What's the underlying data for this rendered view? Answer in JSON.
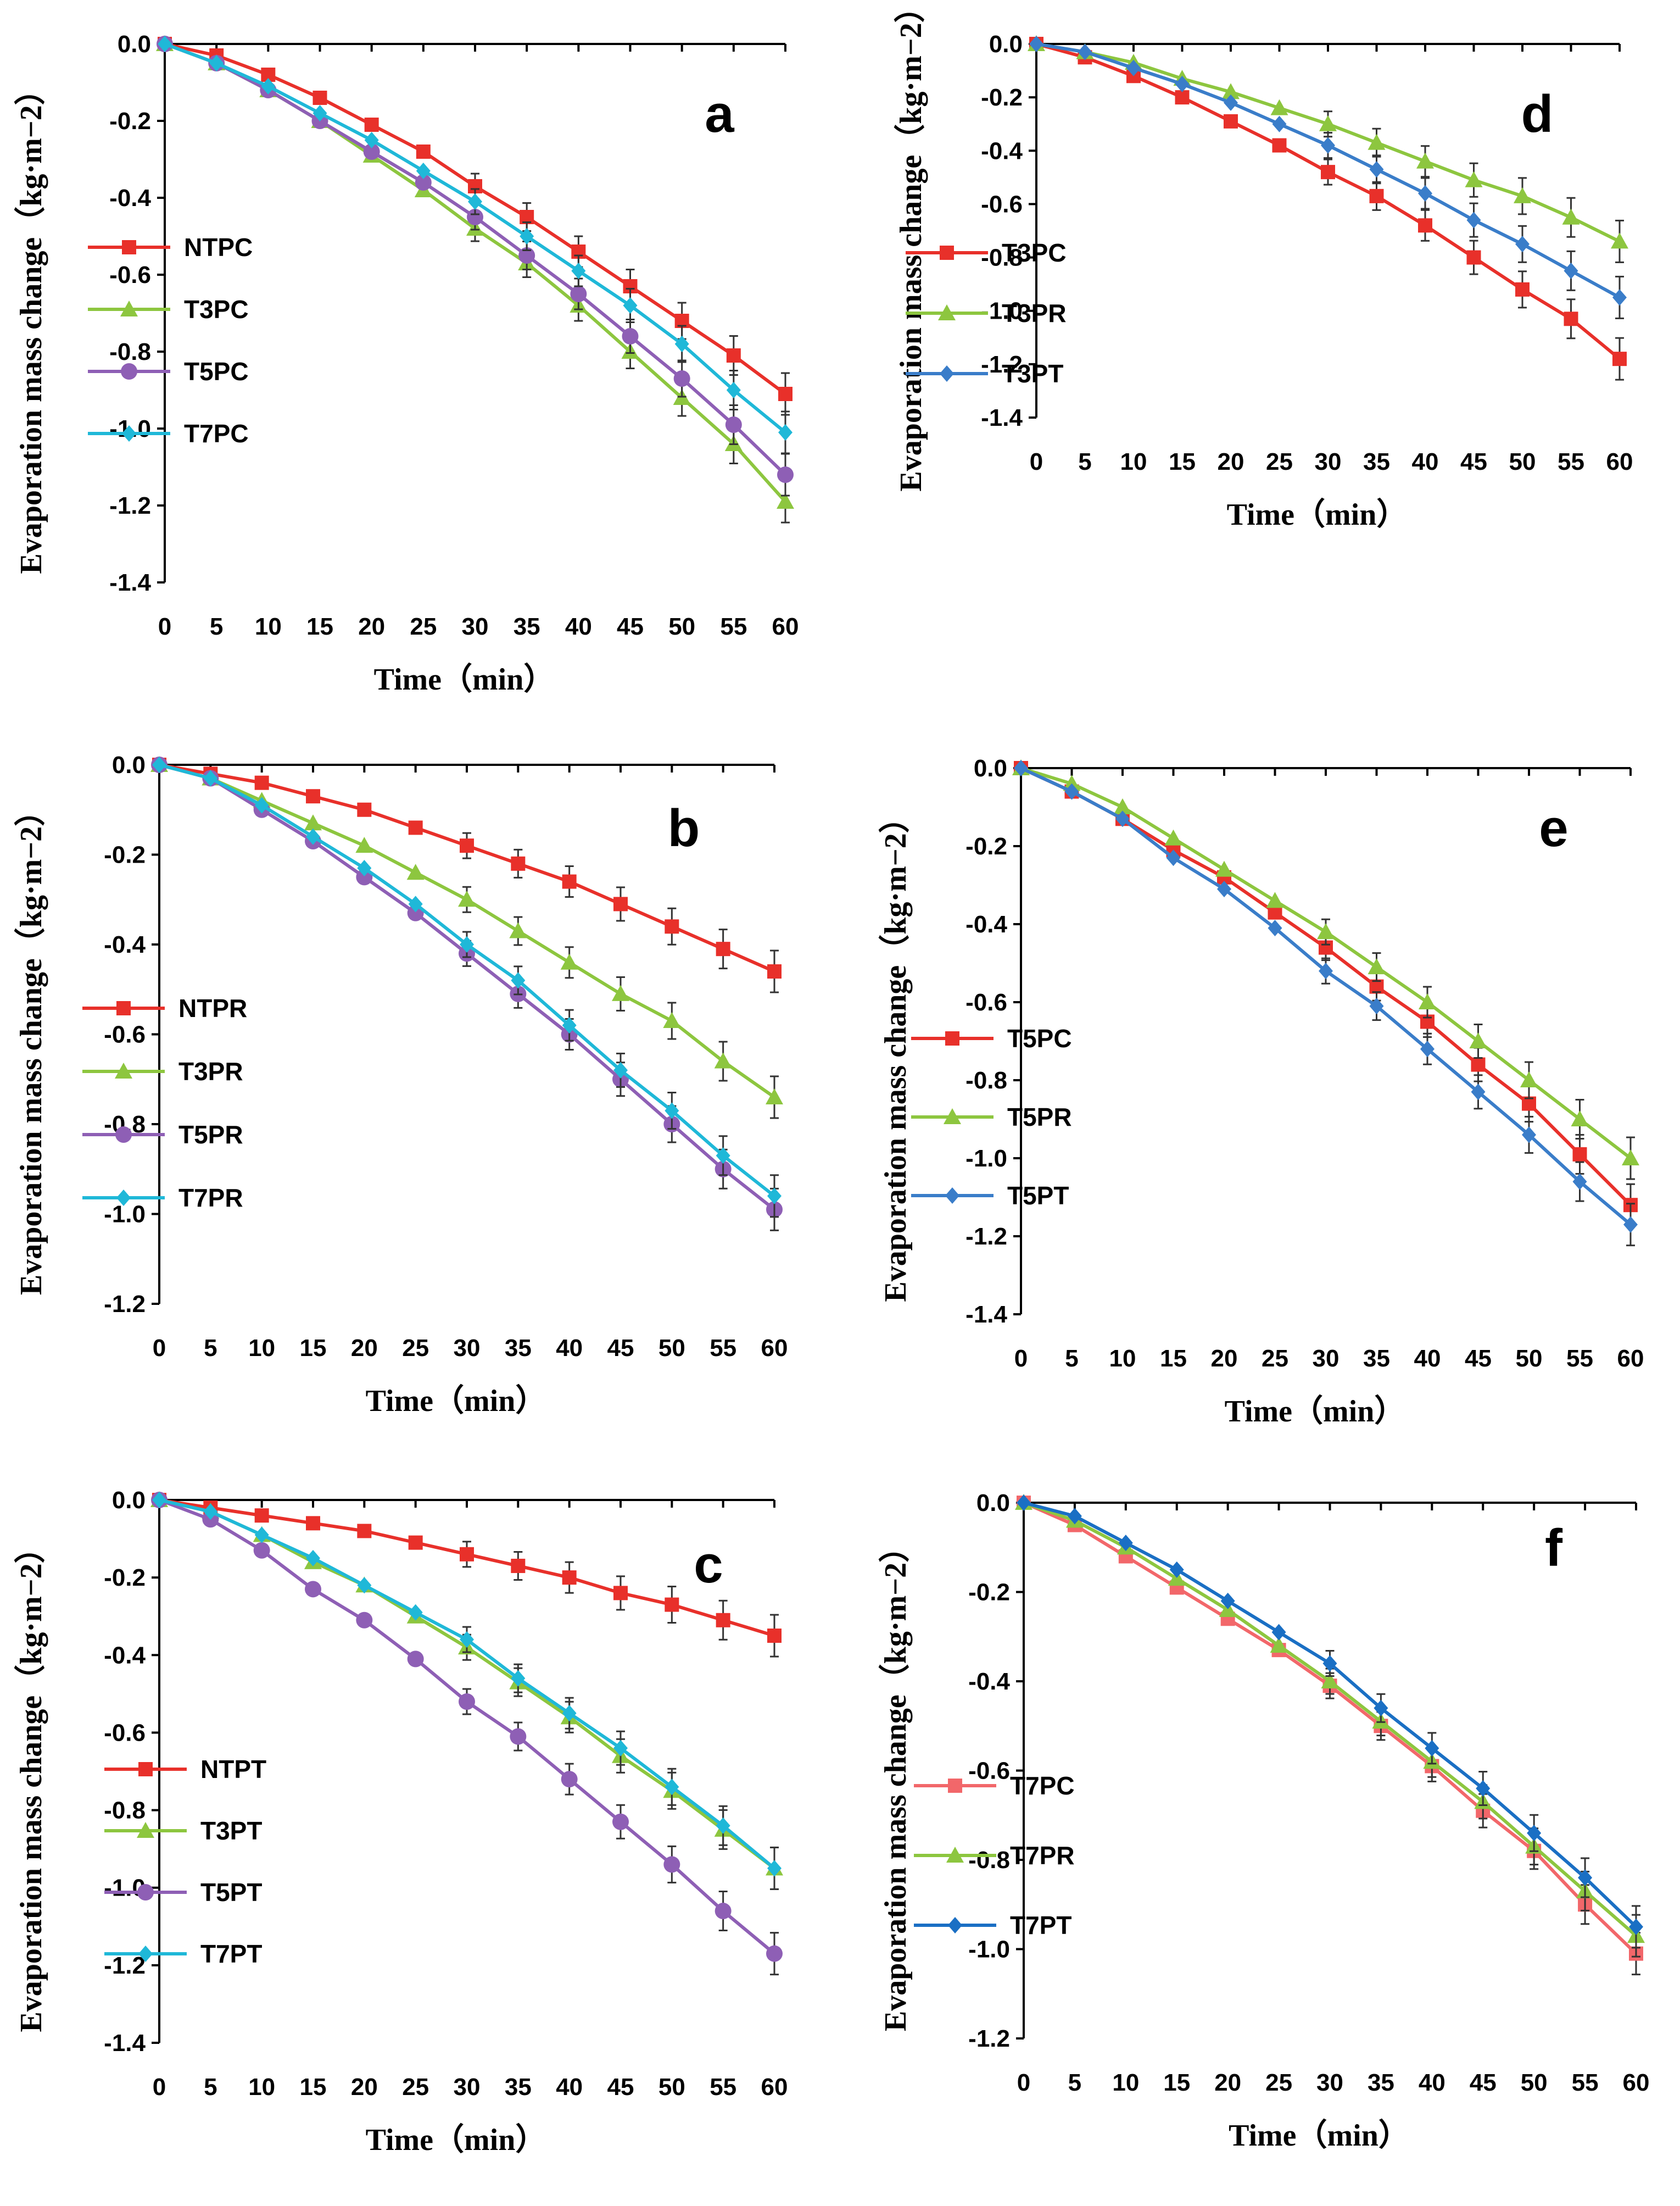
{
  "figure": {
    "x_label": "Time（min）",
    "y_label": "Evaporation mass change（kg·m−2）"
  },
  "chart_data": [
    {
      "type": "line",
      "panel_label": "a",
      "legend_position": "center-left",
      "xlabel": "Time（min）",
      "ylabel": "Evaporation mass change（kg·m−2）",
      "x": [
        0,
        5,
        10,
        15,
        20,
        25,
        30,
        35,
        40,
        45,
        50,
        55,
        60
      ],
      "xlim": [
        0,
        60
      ],
      "ylim": [
        -1.4,
        0.0
      ],
      "y_ticks": [
        "0.0",
        "-0.2",
        "-0.4",
        "-0.6",
        "-0.8",
        "-1.0",
        "-1.2",
        "-1.4"
      ],
      "series": [
        {
          "name": "NTPC",
          "color": "#e8302a",
          "marker": "square",
          "values": [
            0,
            -0.03,
            -0.08,
            -0.14,
            -0.21,
            -0.28,
            -0.37,
            -0.45,
            -0.54,
            -0.63,
            -0.72,
            -0.81,
            -0.91
          ]
        },
        {
          "name": "T3PC",
          "color": "#8dc63f",
          "marker": "triangle",
          "values": [
            0,
            -0.05,
            -0.12,
            -0.2,
            -0.29,
            -0.38,
            -0.48,
            -0.57,
            -0.68,
            -0.8,
            -0.92,
            -1.04,
            -1.19
          ]
        },
        {
          "name": "T5PC",
          "color": "#8e5fb5",
          "marker": "circle",
          "values": [
            0,
            -0.05,
            -0.12,
            -0.2,
            -0.28,
            -0.36,
            -0.45,
            -0.55,
            -0.65,
            -0.76,
            -0.87,
            -0.99,
            -1.12
          ]
        },
        {
          "name": "T7PC",
          "color": "#1fb8d8",
          "marker": "diamond",
          "values": [
            0,
            -0.05,
            -0.11,
            -0.18,
            -0.25,
            -0.33,
            -0.41,
            -0.5,
            -0.59,
            -0.68,
            -0.78,
            -0.9,
            -1.01
          ]
        }
      ]
    },
    {
      "type": "line",
      "panel_label": "b",
      "legend_position": "center-left",
      "xlabel": "Time（min）",
      "ylabel": "Evaporation mass change（kg·m−2）",
      "x": [
        0,
        5,
        10,
        15,
        20,
        25,
        30,
        35,
        40,
        45,
        50,
        55,
        60
      ],
      "xlim": [
        0,
        60
      ],
      "ylim": [
        -1.2,
        0.0
      ],
      "y_ticks": [
        "0.0",
        "-0.2",
        "-0.4",
        "-0.6",
        "-0.8",
        "-1.0",
        "-1.2"
      ],
      "series": [
        {
          "name": "NTPR",
          "color": "#e8302a",
          "marker": "square",
          "values": [
            0,
            -0.02,
            -0.04,
            -0.07,
            -0.1,
            -0.14,
            -0.18,
            -0.22,
            -0.26,
            -0.31,
            -0.36,
            -0.41,
            -0.46
          ]
        },
        {
          "name": "T3PR",
          "color": "#8dc63f",
          "marker": "triangle",
          "values": [
            0,
            -0.03,
            -0.08,
            -0.13,
            -0.18,
            -0.24,
            -0.3,
            -0.37,
            -0.44,
            -0.51,
            -0.57,
            -0.66,
            -0.74
          ]
        },
        {
          "name": "T5PR",
          "color": "#8e5fb5",
          "marker": "circle",
          "values": [
            0,
            -0.03,
            -0.1,
            -0.17,
            -0.25,
            -0.33,
            -0.42,
            -0.51,
            -0.6,
            -0.7,
            -0.8,
            -0.9,
            -0.99
          ]
        },
        {
          "name": "T7PR",
          "color": "#1fb8d8",
          "marker": "diamond",
          "values": [
            0,
            -0.03,
            -0.09,
            -0.16,
            -0.23,
            -0.31,
            -0.4,
            -0.48,
            -0.58,
            -0.68,
            -0.77,
            -0.87,
            -0.96
          ]
        }
      ]
    },
    {
      "type": "line",
      "panel_label": "c",
      "legend_position": "bottom-left",
      "xlabel": "Time（min）",
      "ylabel": "Evaporation mass change（kg·m−2）",
      "x": [
        0,
        5,
        10,
        15,
        20,
        25,
        30,
        35,
        40,
        45,
        50,
        55,
        60
      ],
      "xlim": [
        0,
        60
      ],
      "ylim": [
        -1.4,
        0.0
      ],
      "y_ticks": [
        "0.0",
        "-0.2",
        "-0.4",
        "-0.6",
        "-0.8",
        "-1.0",
        "-1.2",
        "-1.4"
      ],
      "series": [
        {
          "name": "NTPT",
          "color": "#e8302a",
          "marker": "square",
          "values": [
            0,
            -0.02,
            -0.04,
            -0.06,
            -0.08,
            -0.11,
            -0.14,
            -0.17,
            -0.2,
            -0.24,
            -0.27,
            -0.31,
            -0.35
          ]
        },
        {
          "name": "T3PT",
          "color": "#8dc63f",
          "marker": "triangle",
          "values": [
            0,
            -0.03,
            -0.09,
            -0.16,
            -0.22,
            -0.3,
            -0.38,
            -0.47,
            -0.56,
            -0.66,
            -0.75,
            -0.85,
            -0.95
          ]
        },
        {
          "name": "T5PT",
          "color": "#8e5fb5",
          "marker": "circle",
          "values": [
            0,
            -0.05,
            -0.13,
            -0.23,
            -0.31,
            -0.41,
            -0.52,
            -0.61,
            -0.72,
            -0.83,
            -0.94,
            -1.06,
            -1.17
          ]
        },
        {
          "name": "T7PT",
          "color": "#1fb8d8",
          "marker": "diamond",
          "values": [
            0,
            -0.03,
            -0.09,
            -0.15,
            -0.22,
            -0.29,
            -0.36,
            -0.46,
            -0.55,
            -0.64,
            -0.74,
            -0.84,
            -0.95
          ]
        }
      ]
    },
    {
      "type": "line",
      "panel_label": "d",
      "legend_position": "center-left",
      "xlabel": "Time（min）",
      "ylabel": "Evaporation mass change（kg·m−2）",
      "x": [
        0,
        5,
        10,
        15,
        20,
        25,
        30,
        35,
        40,
        45,
        50,
        55,
        60
      ],
      "xlim": [
        0,
        60
      ],
      "ylim": [
        -1.4,
        0.0
      ],
      "y_ticks": [
        "0.0",
        "-0.2",
        "-0.4",
        "-0.6",
        "-0.8",
        "-1.0",
        "-1.2",
        "-1.4"
      ],
      "series": [
        {
          "name": "T3PC",
          "color": "#e8302a",
          "marker": "square",
          "values": [
            0,
            -0.05,
            -0.12,
            -0.2,
            -0.29,
            -0.38,
            -0.48,
            -0.57,
            -0.68,
            -0.8,
            -0.92,
            -1.03,
            -1.18
          ]
        },
        {
          "name": "T3PR",
          "color": "#8dc63f",
          "marker": "triangle",
          "values": [
            0,
            -0.03,
            -0.07,
            -0.13,
            -0.18,
            -0.24,
            -0.3,
            -0.37,
            -0.44,
            -0.51,
            -0.57,
            -0.65,
            -0.74
          ]
        },
        {
          "name": "T3PT",
          "color": "#3a7dc9",
          "marker": "diamond",
          "values": [
            0,
            -0.03,
            -0.09,
            -0.15,
            -0.22,
            -0.3,
            -0.38,
            -0.47,
            -0.56,
            -0.66,
            -0.75,
            -0.85,
            -0.95
          ]
        }
      ]
    },
    {
      "type": "line",
      "panel_label": "e",
      "legend_position": "center-left",
      "xlabel": "Time（min）",
      "ylabel": "Evaporation mass change（kg·m−2）",
      "x": [
        0,
        5,
        10,
        15,
        20,
        25,
        30,
        35,
        40,
        45,
        50,
        55,
        60
      ],
      "xlim": [
        0,
        60
      ],
      "ylim": [
        -1.4,
        0.0
      ],
      "y_ticks": [
        "0.0",
        "-0.2",
        "-0.4",
        "-0.6",
        "-0.8",
        "-1.0",
        "-1.2",
        "-1.4"
      ],
      "series": [
        {
          "name": "T5PC",
          "color": "#e8302a",
          "marker": "square",
          "values": [
            0,
            -0.06,
            -0.13,
            -0.21,
            -0.28,
            -0.37,
            -0.46,
            -0.56,
            -0.65,
            -0.76,
            -0.86,
            -0.99,
            -1.12
          ]
        },
        {
          "name": "T5PR",
          "color": "#8dc63f",
          "marker": "triangle",
          "values": [
            0,
            -0.04,
            -0.1,
            -0.18,
            -0.26,
            -0.34,
            -0.42,
            -0.51,
            -0.6,
            -0.7,
            -0.8,
            -0.9,
            -1.0
          ]
        },
        {
          "name": "T5PT",
          "color": "#3a7dc9",
          "marker": "diamond",
          "values": [
            0,
            -0.06,
            -0.13,
            -0.23,
            -0.31,
            -0.41,
            -0.52,
            -0.61,
            -0.72,
            -0.83,
            -0.94,
            -1.06,
            -1.17
          ]
        }
      ]
    },
    {
      "type": "line",
      "panel_label": "f",
      "legend_position": "bottom-left",
      "xlabel": "Time（min）",
      "ylabel": "Evaporation mass change（kg·m−2）",
      "x": [
        0,
        5,
        10,
        15,
        20,
        25,
        30,
        35,
        40,
        45,
        50,
        55,
        60
      ],
      "xlim": [
        0,
        60
      ],
      "ylim": [
        -1.2,
        0.0
      ],
      "y_ticks": [
        "0.0",
        "-0.2",
        "-0.4",
        "-0.6",
        "-0.8",
        "-1.0",
        "-1.2"
      ],
      "series": [
        {
          "name": "T7PC",
          "color": "#f2676a",
          "marker": "square",
          "values": [
            0,
            -0.05,
            -0.12,
            -0.19,
            -0.26,
            -0.33,
            -0.41,
            -0.5,
            -0.59,
            -0.69,
            -0.78,
            -0.9,
            -1.01
          ]
        },
        {
          "name": "T7PR",
          "color": "#8dc63f",
          "marker": "triangle",
          "values": [
            0,
            -0.04,
            -0.1,
            -0.17,
            -0.24,
            -0.32,
            -0.4,
            -0.49,
            -0.58,
            -0.67,
            -0.77,
            -0.87,
            -0.97
          ]
        },
        {
          "name": "T7PT",
          "color": "#1a6fc4",
          "marker": "diamond",
          "values": [
            0,
            -0.03,
            -0.09,
            -0.15,
            -0.22,
            -0.29,
            -0.36,
            -0.46,
            -0.55,
            -0.64,
            -0.74,
            -0.84,
            -0.95
          ]
        }
      ]
    }
  ]
}
